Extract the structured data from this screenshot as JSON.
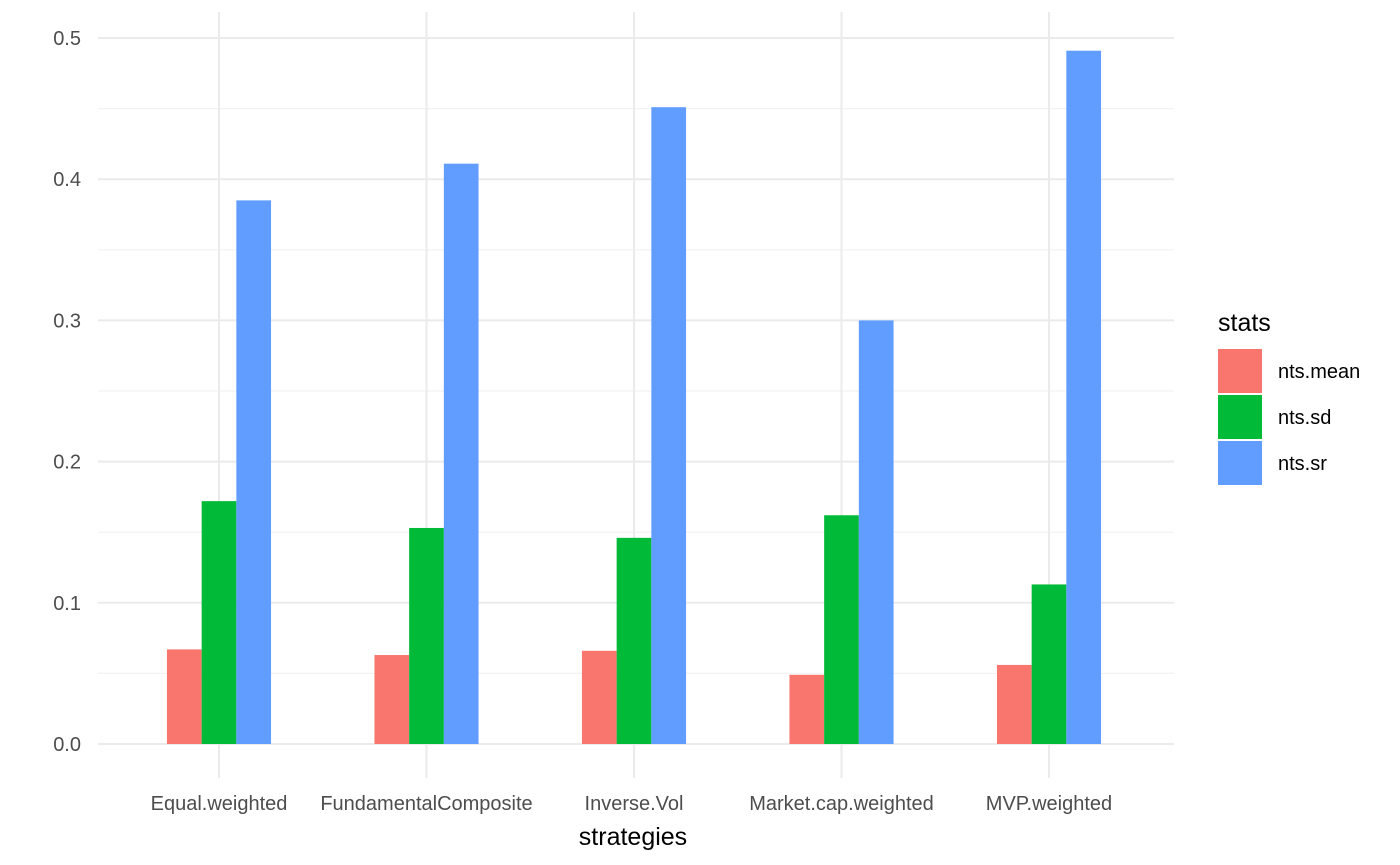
{
  "chart_data": {
    "type": "bar",
    "title": "",
    "xlabel": "strategies",
    "ylabel": "",
    "ylim": [
      0,
      0.5
    ],
    "y_ticks": [
      "0.0",
      "0.1",
      "0.2",
      "0.3",
      "0.4",
      "0.5"
    ],
    "categories": [
      "Equal.weighted",
      "FundamentalComposite",
      "Inverse.Vol",
      "Market.cap.weighted",
      "MVP.weighted"
    ],
    "legend_title": "stats",
    "legend_position": "right",
    "grid": true,
    "series": [
      {
        "name": "nts.mean",
        "color": "#F8766D",
        "values": [
          0.067,
          0.063,
          0.066,
          0.049,
          0.056
        ]
      },
      {
        "name": "nts.sd",
        "color": "#00BA38",
        "values": [
          0.172,
          0.153,
          0.146,
          0.162,
          0.113
        ]
      },
      {
        "name": "nts.sr",
        "color": "#619CFF",
        "values": [
          0.385,
          0.411,
          0.451,
          0.3,
          0.491
        ]
      }
    ]
  }
}
